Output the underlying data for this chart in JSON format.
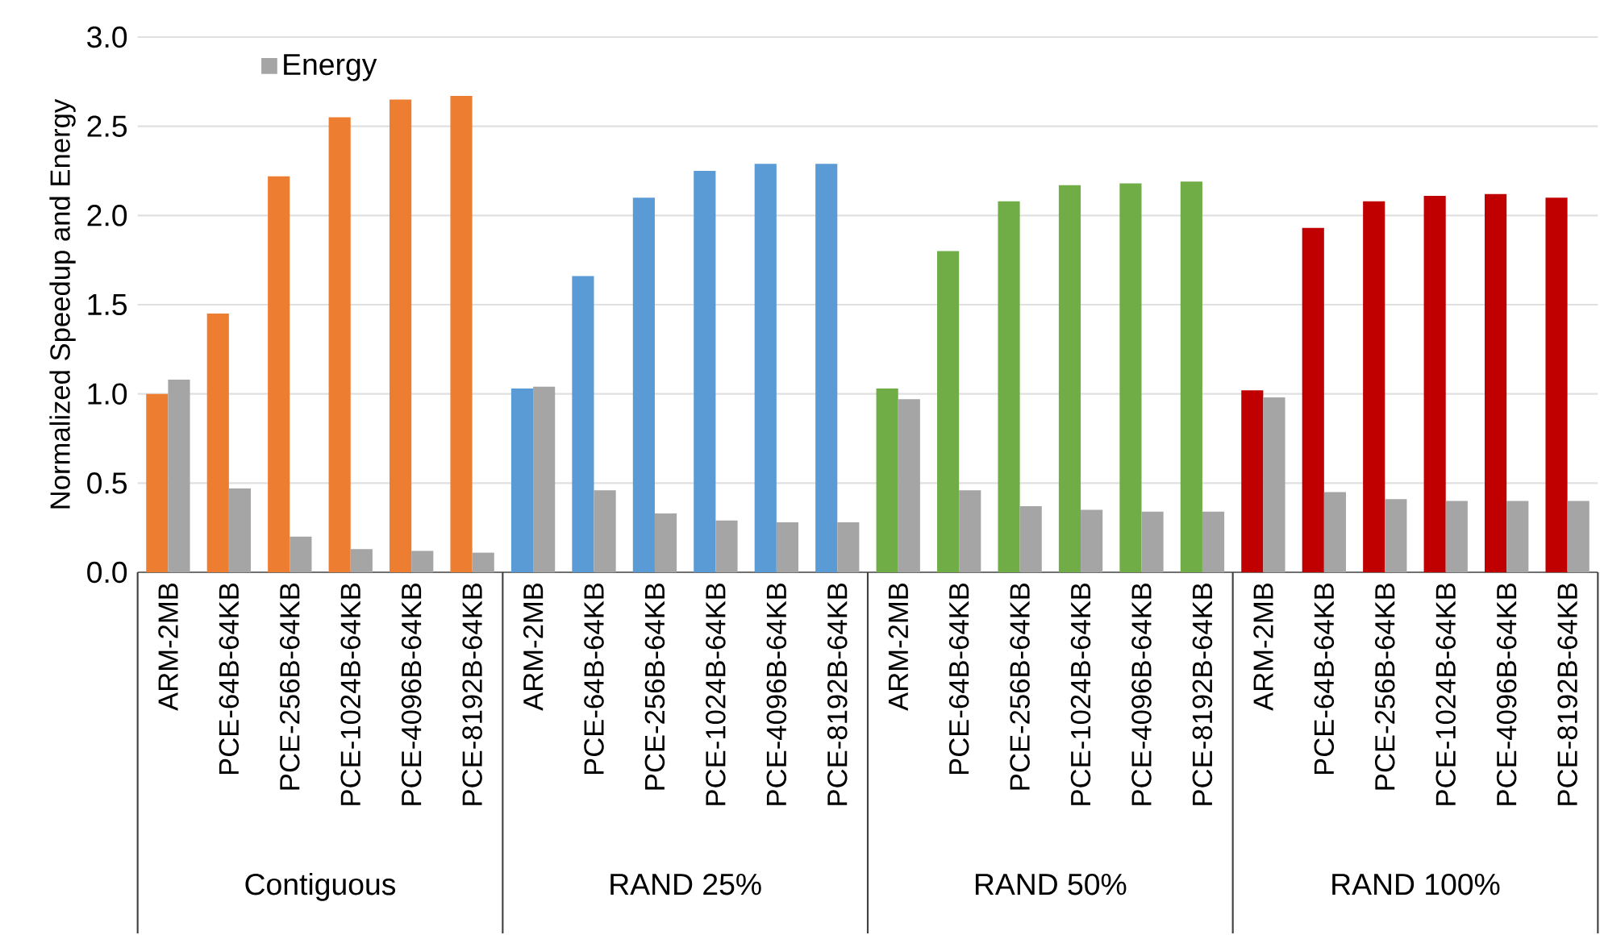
{
  "chart_data": {
    "type": "bar",
    "ylabel": "Normalized Speedup and Energy",
    "categories": [
      "ARM-2MB",
      "PCE-64B-64KB",
      "PCE-256B-64KB",
      "PCE-1024B-64KB",
      "PCE-4096B-64KB",
      "PCE-8192B-64KB",
      "ARM-2MB",
      "PCE-64B-64KB",
      "PCE-256B-64KB",
      "PCE-1024B-64KB",
      "PCE-4096B-64KB",
      "PCE-8192B-64KB",
      "ARM-2MB",
      "PCE-64B-64KB",
      "PCE-256B-64KB",
      "PCE-1024B-64KB",
      "PCE-4096B-64KB",
      "PCE-8192B-64KB",
      "ARM-2MB",
      "PCE-64B-64KB",
      "PCE-256B-64KB",
      "PCE-1024B-64KB",
      "PCE-4096B-64KB",
      "PCE-8192B-64KB"
    ],
    "series": [
      {
        "colors": [
          "#ed7d31",
          "#ed7d31",
          "#ed7d31",
          "#ed7d31",
          "#ed7d31",
          "#ed7d31",
          "#5b9bd5",
          "#5b9bd5",
          "#5b9bd5",
          "#5b9bd5",
          "#5b9bd5",
          "#5b9bd5",
          "#70ad47",
          "#70ad47",
          "#70ad47",
          "#70ad47",
          "#70ad47",
          "#70ad47",
          "#c00000",
          "#c00000",
          "#c00000",
          "#c00000",
          "#c00000",
          "#c00000"
        ],
        "values": [
          1.0,
          1.45,
          2.22,
          2.55,
          2.65,
          2.67,
          1.03,
          1.66,
          2.1,
          2.25,
          2.29,
          2.29,
          1.03,
          1.8,
          2.08,
          2.17,
          2.18,
          2.19,
          1.02,
          1.93,
          2.08,
          2.11,
          2.12,
          2.1
        ]
      },
      {
        "name": "Energy",
        "color": "#a5a5a5",
        "values": [
          1.08,
          0.47,
          0.2,
          0.13,
          0.12,
          0.11,
          1.04,
          0.46,
          0.33,
          0.29,
          0.28,
          0.28,
          0.97,
          0.46,
          0.37,
          0.35,
          0.34,
          0.34,
          0.98,
          0.45,
          0.41,
          0.4,
          0.4,
          0.4
        ]
      }
    ],
    "ylim": [
      0,
      3
    ],
    "yticks": [
      {
        "value": 0,
        "label": "0.0"
      },
      {
        "value": 0.5,
        "label": "0.5"
      },
      {
        "value": 1,
        "label": "1.0"
      },
      {
        "value": 1.5,
        "label": "1.5"
      },
      {
        "value": 2,
        "label": "2.0"
      },
      {
        "value": 2.5,
        "label": "2.5"
      },
      {
        "value": 3,
        "label": "3.0"
      }
    ],
    "grid": "y",
    "legend": "top left",
    "annotations": [
      "Contiguous",
      "RAND 25%",
      "RAND 50%",
      "RAND 100%"
    ]
  }
}
